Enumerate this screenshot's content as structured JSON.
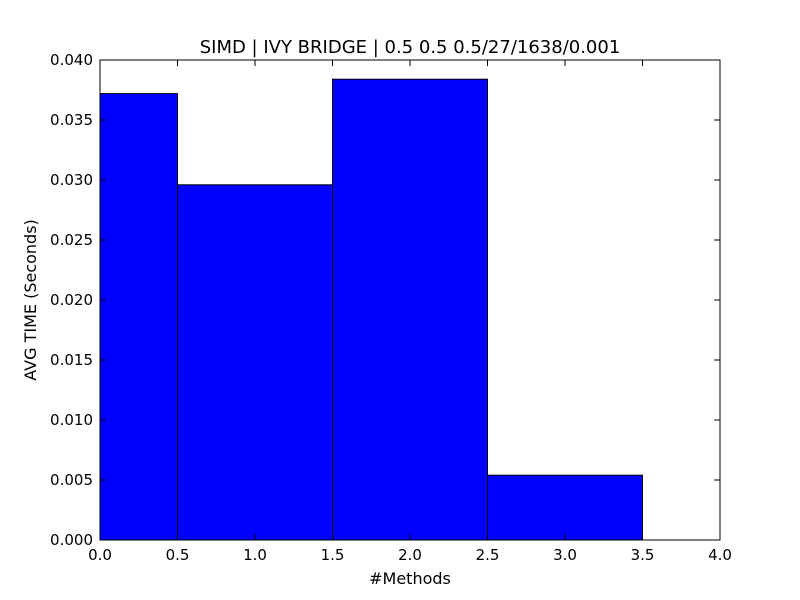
{
  "chart_data": {
    "type": "bar",
    "title": "SIMD | IVY BRIDGE | 0.5 0.5 0.5/27/1638/0.001",
    "xlabel": "#Methods",
    "ylabel": "AVG TIME (Seconds)",
    "xlim": [
      0.0,
      4.0
    ],
    "ylim": [
      0.0,
      0.04
    ],
    "x_ticks": [
      "0.0",
      "0.5",
      "1.0",
      "1.5",
      "2.0",
      "2.5",
      "3.0",
      "3.5",
      "4.0"
    ],
    "y_ticks": [
      "0.000",
      "0.005",
      "0.010",
      "0.015",
      "0.020",
      "0.025",
      "0.030",
      "0.035",
      "0.040"
    ],
    "bars": [
      {
        "x0": 0.0,
        "x1": 0.5,
        "value": 0.0372
      },
      {
        "x0": 0.5,
        "x1": 1.5,
        "value": 0.0296
      },
      {
        "x0": 1.5,
        "x1": 2.5,
        "value": 0.0384
      },
      {
        "x0": 2.5,
        "x1": 3.5,
        "value": 0.0054
      }
    ],
    "grid": false,
    "bar_color": "#0000ff",
    "edge_color": "#000000"
  }
}
